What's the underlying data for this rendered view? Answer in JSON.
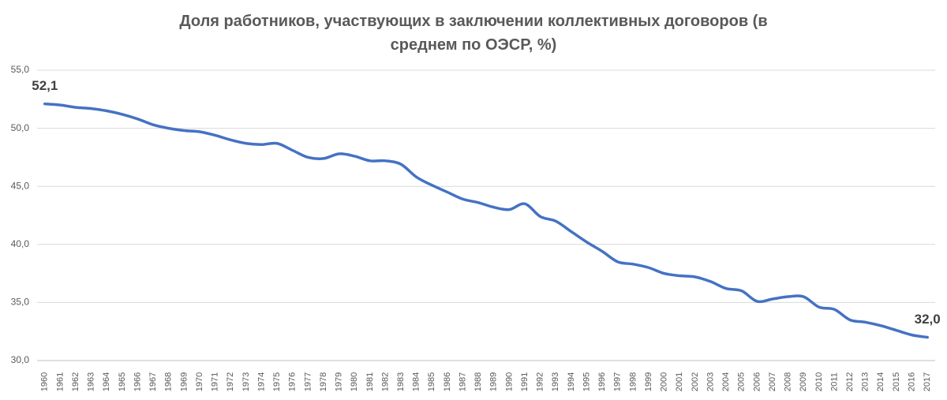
{
  "chart_data": {
    "type": "line",
    "title": "Доля работников, участвующих в заключении коллективных договоров (в среднем по ОЭСР, %)",
    "categories": [
      "1960",
      "1961",
      "1962",
      "1963",
      "1964",
      "1965",
      "1966",
      "1967",
      "1968",
      "1969",
      "1970",
      "1971",
      "1972",
      "1973",
      "1974",
      "1975",
      "1976",
      "1977",
      "1978",
      "1979",
      "1980",
      "1981",
      "1982",
      "1983",
      "1984",
      "1985",
      "1986",
      "1987",
      "1988",
      "1989",
      "1990",
      "1991",
      "1992",
      "1993",
      "1994",
      "1995",
      "1996",
      "1997",
      "1998",
      "1999",
      "2000",
      "2001",
      "2002",
      "2003",
      "2004",
      "2005",
      "2006",
      "2007",
      "2008",
      "2009",
      "2010",
      "2011",
      "2012",
      "2013",
      "2014",
      "2015",
      "2016",
      "2017"
    ],
    "series": [
      {
        "color": "#4472c4",
        "values": [
          52.1,
          52.0,
          51.8,
          51.7,
          51.5,
          51.2,
          50.8,
          50.3,
          50.0,
          49.8,
          49.7,
          49.4,
          49.0,
          48.7,
          48.6,
          48.7,
          48.1,
          47.5,
          47.4,
          47.8,
          47.6,
          47.2,
          47.2,
          46.9,
          45.8,
          45.1,
          44.5,
          43.9,
          43.6,
          43.2,
          43.0,
          43.5,
          42.4,
          42.0,
          41.1,
          40.2,
          39.4,
          38.5,
          38.3,
          38.0,
          37.5,
          37.3,
          37.2,
          36.8,
          36.2,
          36.0,
          35.1,
          35.3,
          35.5,
          35.5,
          34.6,
          34.4,
          33.5,
          33.3,
          33.0,
          32.6,
          32.2,
          32.0
        ],
        "value_labels": [
          "52,1",
          null,
          null,
          null,
          null,
          null,
          null,
          null,
          null,
          null,
          null,
          null,
          null,
          null,
          null,
          null,
          null,
          null,
          null,
          null,
          null,
          null,
          null,
          null,
          null,
          null,
          null,
          null,
          null,
          null,
          null,
          null,
          null,
          null,
          null,
          null,
          null,
          null,
          null,
          null,
          null,
          null,
          null,
          null,
          null,
          null,
          null,
          null,
          null,
          null,
          null,
          null,
          null,
          null,
          null,
          null,
          null,
          "32,0"
        ]
      }
    ],
    "ylim": [
      30,
      55
    ],
    "yticks": [
      {
        "value": 30,
        "label": "30,0"
      },
      {
        "value": 35,
        "label": "35,0"
      },
      {
        "value": 40,
        "label": "40,0"
      },
      {
        "value": 45,
        "label": "45,0"
      },
      {
        "value": 50,
        "label": "50,0"
      },
      {
        "value": 55,
        "label": "55,0"
      }
    ],
    "grid": true
  }
}
